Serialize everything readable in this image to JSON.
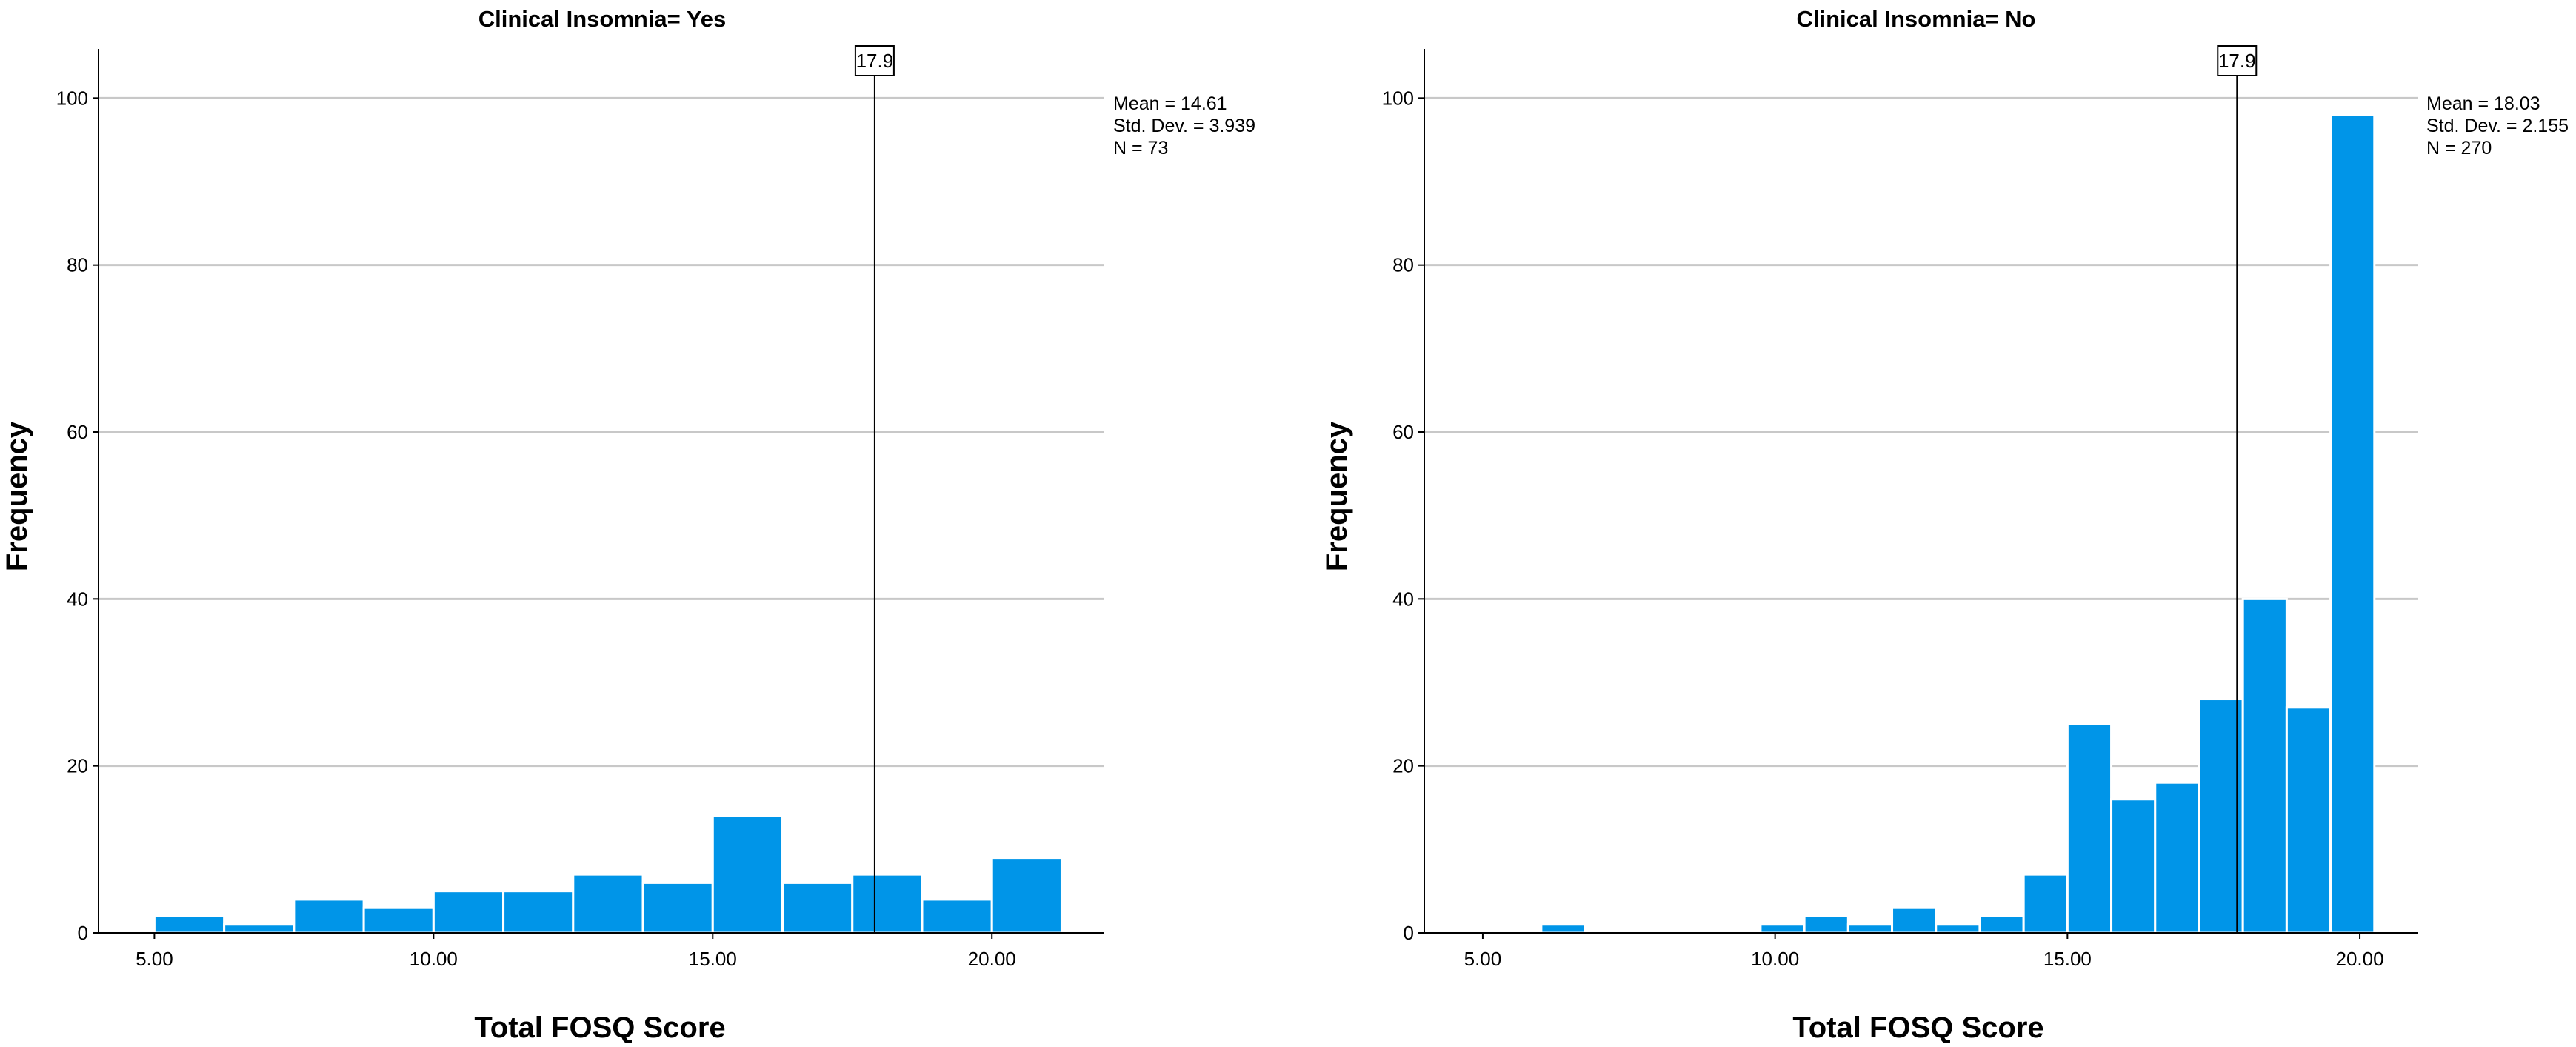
{
  "chart_data": [
    {
      "type": "histogram",
      "title": "Clinical Insomnia= Yes",
      "xlabel": "Total FOSQ Score",
      "ylabel": "Frequency",
      "xlim": [
        4.0,
        22.0
      ],
      "ylim": [
        0,
        105
      ],
      "xticks": [
        5,
        10,
        15,
        20
      ],
      "xtick_labels": [
        "5.00",
        "10.00",
        "15.00",
        "20.00"
      ],
      "yticks": [
        0,
        20,
        40,
        60,
        80,
        100
      ],
      "ytick_labels": [
        "0",
        "20",
        "40",
        "60",
        "80",
        "100"
      ],
      "grid": true,
      "bar_color": "#0095E8",
      "bars": [
        {
          "x0": 5.0,
          "x1": 6.25,
          "count": 2
        },
        {
          "x0": 6.25,
          "x1": 7.5,
          "count": 1
        },
        {
          "x0": 7.5,
          "x1": 8.75,
          "count": 4
        },
        {
          "x0": 8.75,
          "x1": 10.0,
          "count": 3
        },
        {
          "x0": 10.0,
          "x1": 11.25,
          "count": 5
        },
        {
          "x0": 11.25,
          "x1": 12.5,
          "count": 5
        },
        {
          "x0": 12.5,
          "x1": 13.75,
          "count": 7
        },
        {
          "x0": 13.75,
          "x1": 15.0,
          "count": 6
        },
        {
          "x0": 15.0,
          "x1": 16.25,
          "count": 14
        },
        {
          "x0": 16.25,
          "x1": 17.5,
          "count": 6
        },
        {
          "x0": 17.5,
          "x1": 18.75,
          "count": 7
        },
        {
          "x0": 18.75,
          "x1": 20.0,
          "count": 4
        },
        {
          "x0": 20.0,
          "x1": 21.25,
          "count": 9
        }
      ],
      "reference_line": {
        "value": 17.9,
        "label": "17.9"
      },
      "stats": [
        "Mean = 14.61",
        "Std. Dev. = 3.939",
        "N = 73"
      ]
    },
    {
      "type": "histogram",
      "title": "Clinical Insomnia= No",
      "xlabel": "Total FOSQ Score",
      "ylabel": "Frequency",
      "xlim": [
        4.0,
        21.0
      ],
      "ylim": [
        0,
        105
      ],
      "xticks": [
        5,
        10,
        15,
        20
      ],
      "xtick_labels": [
        "5.00",
        "10.00",
        "15.00",
        "20.00"
      ],
      "yticks": [
        0,
        20,
        40,
        60,
        80,
        100
      ],
      "ytick_labels": [
        "0",
        "20",
        "40",
        "60",
        "80",
        "100"
      ],
      "grid": true,
      "bar_color": "#0095E8",
      "bars": [
        {
          "x0": 5.5,
          "x1": 6.25,
          "count": 0
        },
        {
          "x0": 6.0,
          "x1": 6.75,
          "count": 1
        },
        {
          "x0": 9.75,
          "x1": 10.5,
          "count": 1
        },
        {
          "x0": 10.5,
          "x1": 11.25,
          "count": 2
        },
        {
          "x0": 11.25,
          "x1": 12.0,
          "count": 1
        },
        {
          "x0": 12.0,
          "x1": 12.75,
          "count": 3
        },
        {
          "x0": 12.75,
          "x1": 13.5,
          "count": 1
        },
        {
          "x0": 13.5,
          "x1": 14.25,
          "count": 2
        },
        {
          "x0": 14.25,
          "x1": 15.0,
          "count": 7
        },
        {
          "x0": 15.0,
          "x1": 15.75,
          "count": 25
        },
        {
          "x0": 15.75,
          "x1": 16.5,
          "count": 16
        },
        {
          "x0": 16.5,
          "x1": 17.25,
          "count": 18
        },
        {
          "x0": 17.25,
          "x1": 18.0,
          "count": 28
        },
        {
          "x0": 18.0,
          "x1": 18.75,
          "count": 40
        },
        {
          "x0": 18.75,
          "x1": 19.5,
          "count": 27
        },
        {
          "x0": 19.5,
          "x1": 20.25,
          "count": 98
        }
      ],
      "reference_line": {
        "value": 17.9,
        "label": "17.9"
      },
      "stats": [
        "Mean = 18.03",
        "Std. Dev. = 2.155",
        "N = 270"
      ]
    }
  ]
}
